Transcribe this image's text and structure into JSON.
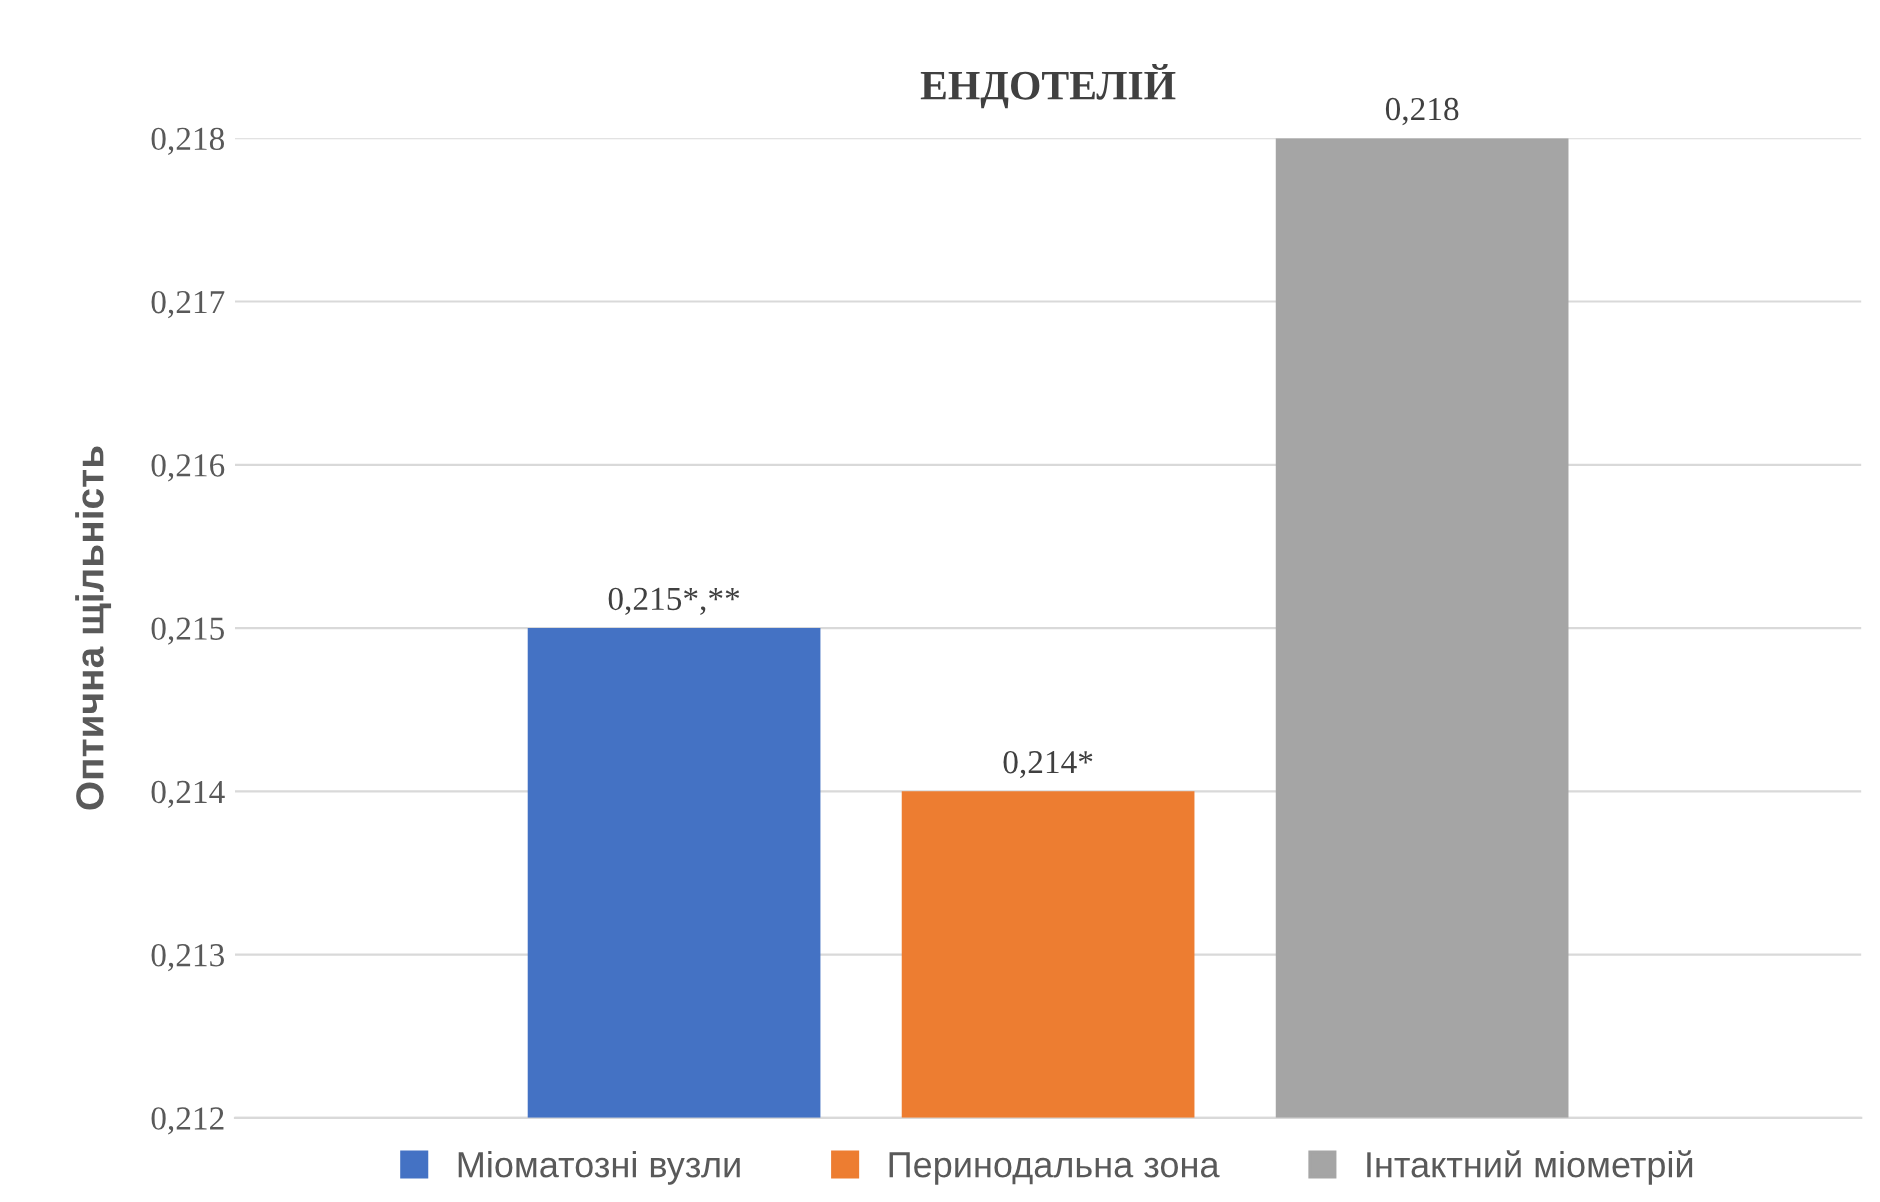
{
  "chart_data": {
    "type": "bar",
    "title": "ЕНДОТЕЛІЙ",
    "ylabel": "Оптична щільність",
    "categories": [
      null
    ],
    "series": [
      {
        "name": "Міоматозні вузли",
        "color": "#4472c4",
        "values": [
          0.215
        ],
        "value_labels": [
          "0,215*,**"
        ]
      },
      {
        "name": "Перинодальна зона",
        "color": "#ed7d31",
        "values": [
          0.214
        ],
        "value_labels": [
          "0,214*"
        ]
      },
      {
        "name": "Інтактний міометрій",
        "color": "#a5a5a5",
        "values": [
          0.218
        ],
        "value_labels": [
          "0,218"
        ]
      }
    ],
    "ylim": [
      0.212,
      0.218
    ],
    "yticks": [
      {
        "value": 0.212,
        "label": "0,212"
      },
      {
        "value": 0.213,
        "label": "0,213"
      },
      {
        "value": 0.214,
        "label": "0,214"
      },
      {
        "value": 0.215,
        "label": "0,215"
      },
      {
        "value": 0.216,
        "label": "0,216"
      },
      {
        "value": 0.217,
        "label": "0,217"
      },
      {
        "value": 0.218,
        "label": "0,218"
      }
    ],
    "grid": "y",
    "legend": "bottom"
  }
}
